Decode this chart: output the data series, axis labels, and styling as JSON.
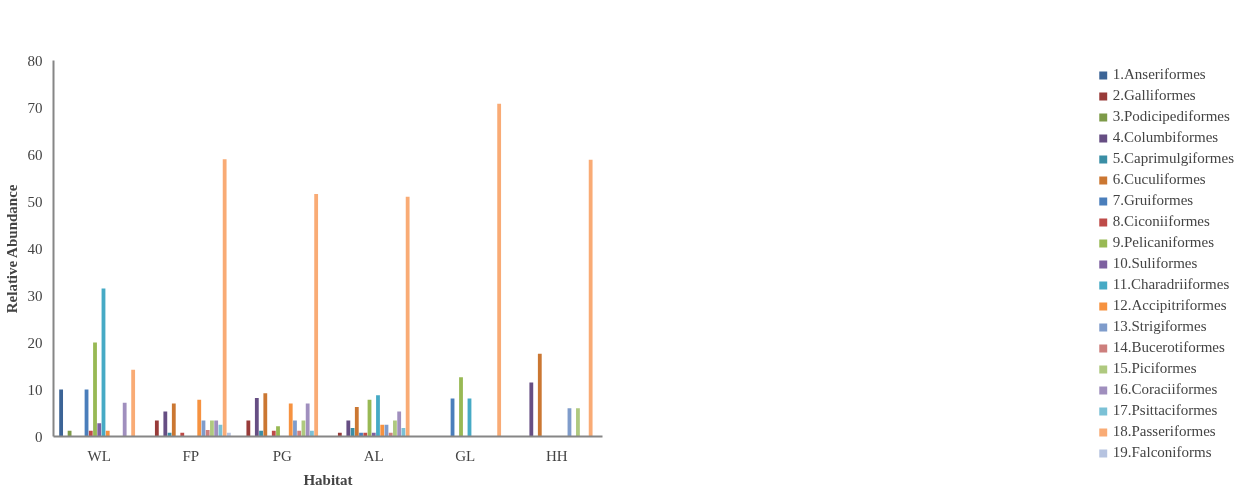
{
  "chart_data": {
    "type": "bar",
    "xlabel": "Habitat",
    "ylabel": "Relative Abundance",
    "categories": [
      "WL",
      "FP",
      "PG",
      "AL",
      "GL",
      "HH"
    ],
    "ylim": [
      0,
      80
    ],
    "yticks": [
      0,
      10,
      20,
      30,
      40,
      50,
      60,
      70,
      80
    ],
    "grid": false,
    "legend": "right",
    "series": [
      {
        "name": "1.Anseriformes",
        "color": "#3c6496",
        "values": [
          10,
          0,
          0,
          0,
          0,
          0
        ]
      },
      {
        "name": "2.Galliformes",
        "color": "#983b39",
        "values": [
          0,
          3.4,
          3.4,
          0.8,
          0,
          0
        ]
      },
      {
        "name": "3.Podicipediformes",
        "color": "#7d9a48",
        "values": [
          1.2,
          0,
          0,
          0,
          0,
          0
        ]
      },
      {
        "name": "4.Columbiformes",
        "color": "#664e83",
        "values": [
          0,
          5.3,
          8.2,
          3.4,
          0,
          11.5
        ]
      },
      {
        "name": "5.Caprimulgiformes",
        "color": "#3a8ea5",
        "values": [
          0,
          0.8,
          1.2,
          1.8,
          0,
          0
        ]
      },
      {
        "name": "6.Cuculiformes",
        "color": "#cb7732",
        "values": [
          0,
          7,
          9.2,
          6.3,
          0,
          17.6
        ]
      },
      {
        "name": "7.Gruiformes",
        "color": "#4a7ebb",
        "values": [
          10,
          0,
          0,
          0.8,
          8.1,
          0
        ]
      },
      {
        "name": "8.Ciconiiformes",
        "color": "#be4b48",
        "values": [
          1.2,
          0.8,
          1.2,
          0.8,
          0,
          0
        ]
      },
      {
        "name": "9.Pelicaniformes",
        "color": "#98b954",
        "values": [
          20,
          0,
          2.2,
          7.8,
          12.6,
          0
        ]
      },
      {
        "name": "10.Suliformes",
        "color": "#7d60a0",
        "values": [
          2.8,
          0,
          0,
          0.8,
          0,
          0
        ]
      },
      {
        "name": "11.Charadriiformes",
        "color": "#46aac5",
        "values": [
          31.5,
          0,
          0,
          8.8,
          8.1,
          0
        ]
      },
      {
        "name": "12.Accipitriformes",
        "color": "#f69240",
        "values": [
          1.2,
          7.8,
          7,
          2.5,
          0,
          0
        ]
      },
      {
        "name": "13.Strigiformes",
        "color": "#7f9ccb",
        "values": [
          0,
          3.4,
          3.4,
          2.5,
          0,
          6
        ]
      },
      {
        "name": "14.Bucerotiformes",
        "color": "#cd7f7d",
        "values": [
          0,
          1.4,
          1.2,
          0.8,
          0,
          0
        ]
      },
      {
        "name": "15.Piciformes",
        "color": "#afc97f",
        "values": [
          0,
          3.4,
          3.4,
          3.4,
          0,
          6
        ]
      },
      {
        "name": "16.Coraciiformes",
        "color": "#a08fbe",
        "values": [
          7.2,
          3.4,
          7,
          5.3,
          0,
          0
        ]
      },
      {
        "name": "17.Psittaciformes",
        "color": "#7bc1d6",
        "values": [
          0,
          2.5,
          1.2,
          1.8,
          0,
          0
        ]
      },
      {
        "name": "18.Passeriformes",
        "color": "#f9ab75",
        "values": [
          14.2,
          59,
          51.6,
          51,
          70.8,
          58.9
        ]
      },
      {
        "name": "19.Falconiforms",
        "color": "#b6c3e0",
        "values": [
          0,
          0.8,
          0,
          0,
          0,
          0
        ]
      }
    ]
  }
}
